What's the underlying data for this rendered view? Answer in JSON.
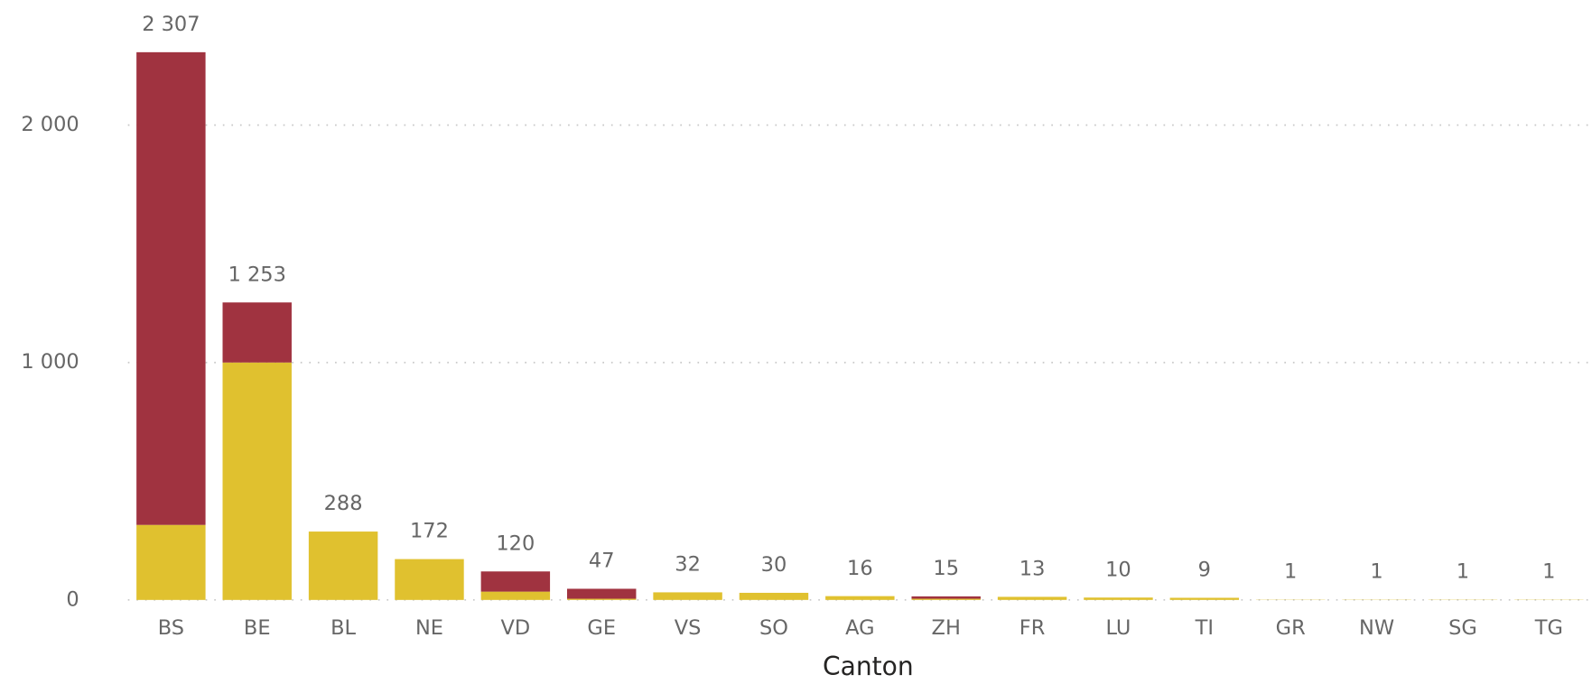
{
  "chart_data": {
    "type": "stacked_bar",
    "x_label": "Canton",
    "categories": [
      "BS",
      "BE",
      "BL",
      "NE",
      "VD",
      "GE",
      "VS",
      "SO",
      "AG",
      "ZH",
      "FR",
      "LU",
      "TI",
      "GR",
      "NW",
      "SG",
      "TG"
    ],
    "series": [
      {
        "color": "#E0C12F",
        "values": [
          316,
          1000,
          288,
          172,
          35,
          5,
          32,
          30,
          16,
          5,
          13,
          10,
          9,
          1,
          1,
          1,
          1
        ]
      },
      {
        "color": "#A03340",
        "values": [
          1991,
          253,
          0,
          0,
          85,
          42,
          0,
          0,
          0,
          10,
          0,
          0,
          0,
          0,
          0,
          0,
          0
        ]
      }
    ],
    "totals": [
      2307,
      1253,
      288,
      172,
      120,
      47,
      32,
      30,
      16,
      15,
      13,
      10,
      9,
      1,
      1,
      1,
      1
    ],
    "total_labels": [
      "2 307",
      "1 253",
      "288",
      "172",
      "120",
      "47",
      "32",
      "30",
      "16",
      "15",
      "13",
      "10",
      "9",
      "1",
      "1",
      "1",
      "1"
    ],
    "ylim": [
      0,
      2500
    ],
    "yticks": [
      0,
      {
        "value": 1000,
        "label": "1 000"
      },
      {
        "value": 2000,
        "label": "2 000"
      }
    ],
    "grid": true
  }
}
